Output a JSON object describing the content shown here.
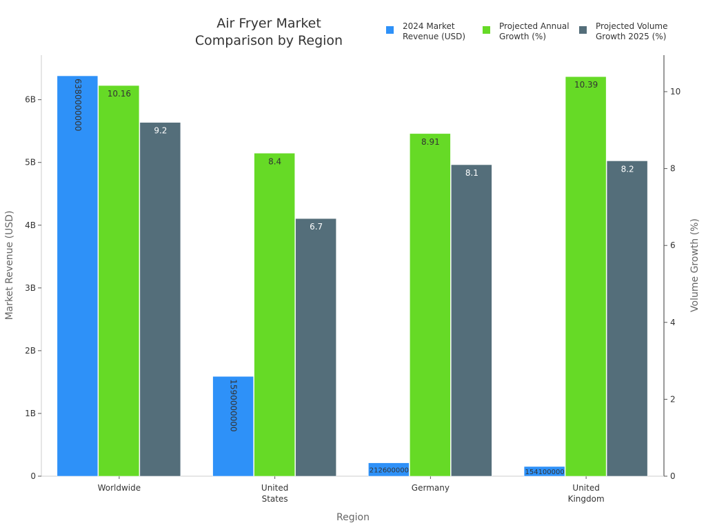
{
  "chart_data": {
    "type": "bar",
    "title": "Air Fryer Market\nComparison by Region",
    "xlabel": "Region",
    "ylabel": "Market Revenue (USD)",
    "y2label": "Volume Growth (%)",
    "categories": [
      "Worldwide",
      "United\nStates",
      "Germany",
      "United\nKingdom"
    ],
    "ylim": [
      0,
      6710000000
    ],
    "y2lim": [
      0,
      10.95
    ],
    "yticks": [
      {
        "v": 0,
        "label": "0"
      },
      {
        "v": 1000000000,
        "label": "1B"
      },
      {
        "v": 2000000000,
        "label": "2B"
      },
      {
        "v": 3000000000,
        "label": "3B"
      },
      {
        "v": 4000000000,
        "label": "4B"
      },
      {
        "v": 5000000000,
        "label": "5B"
      },
      {
        "v": 6000000000,
        "label": "6B"
      }
    ],
    "y2ticks": [
      0,
      2,
      4,
      6,
      8,
      10
    ],
    "grid": false,
    "legend": "top-right",
    "series": [
      {
        "name": "2024 Market\nRevenue (USD)",
        "axis": "left",
        "color": "#2E91F8",
        "values": [
          6380000000,
          1590000000,
          212600000,
          154100000
        ],
        "labels": [
          "6380000000",
          "1590000000",
          "212600000",
          "154100000"
        ]
      },
      {
        "name": "Projected Annual\nGrowth (%)",
        "axis": "right",
        "color": "#66DA26",
        "values": [
          10.16,
          8.4,
          8.91,
          10.39
        ],
        "labels": [
          "10.16",
          "8.4",
          "8.91",
          "10.39"
        ]
      },
      {
        "name": "Projected Volume\nGrowth 2025 (%)",
        "axis": "right",
        "color": "#546E7A",
        "values": [
          9.2,
          6.7,
          8.1,
          8.2
        ],
        "labels": [
          "9.2",
          "6.7",
          "8.1",
          "8.2"
        ]
      }
    ]
  }
}
